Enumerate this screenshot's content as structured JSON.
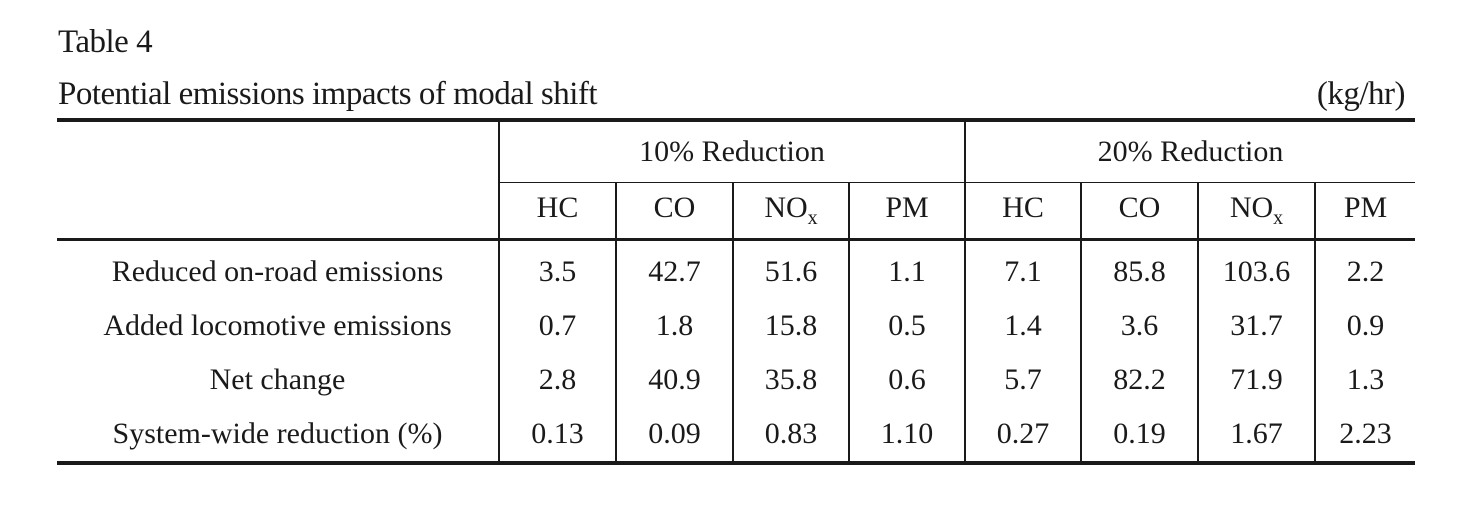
{
  "caption": {
    "label": "Table 4",
    "title": "Potential emissions impacts of modal shift",
    "units": "(kg/hr)"
  },
  "groups": [
    "10% Reduction",
    "20% Reduction"
  ],
  "columns": [
    {
      "base": "HC",
      "sub": ""
    },
    {
      "base": "CO",
      "sub": ""
    },
    {
      "base": "NO",
      "sub": "x"
    },
    {
      "base": "PM",
      "sub": ""
    },
    {
      "base": "HC",
      "sub": ""
    },
    {
      "base": "CO",
      "sub": ""
    },
    {
      "base": "NO",
      "sub": "x"
    },
    {
      "base": "PM",
      "sub": ""
    }
  ],
  "rows": [
    {
      "label": "Reduced on-road emissions",
      "values": [
        "3.5",
        "42.7",
        "51.6",
        "1.1",
        "7.1",
        "85.8",
        "103.6",
        "2.2"
      ]
    },
    {
      "label": "Added locomotive emissions",
      "values": [
        "0.7",
        "1.8",
        "15.8",
        "0.5",
        "1.4",
        "3.6",
        "31.7",
        "0.9"
      ]
    },
    {
      "label": "Net change",
      "values": [
        "2.8",
        "40.9",
        "35.8",
        "0.6",
        "5.7",
        "82.2",
        "71.9",
        "1.3"
      ]
    },
    {
      "label": "System-wide reduction (%)",
      "values": [
        "0.13",
        "0.09",
        "0.83",
        "1.10",
        "0.27",
        "0.19",
        "1.67",
        "2.23"
      ]
    }
  ]
}
